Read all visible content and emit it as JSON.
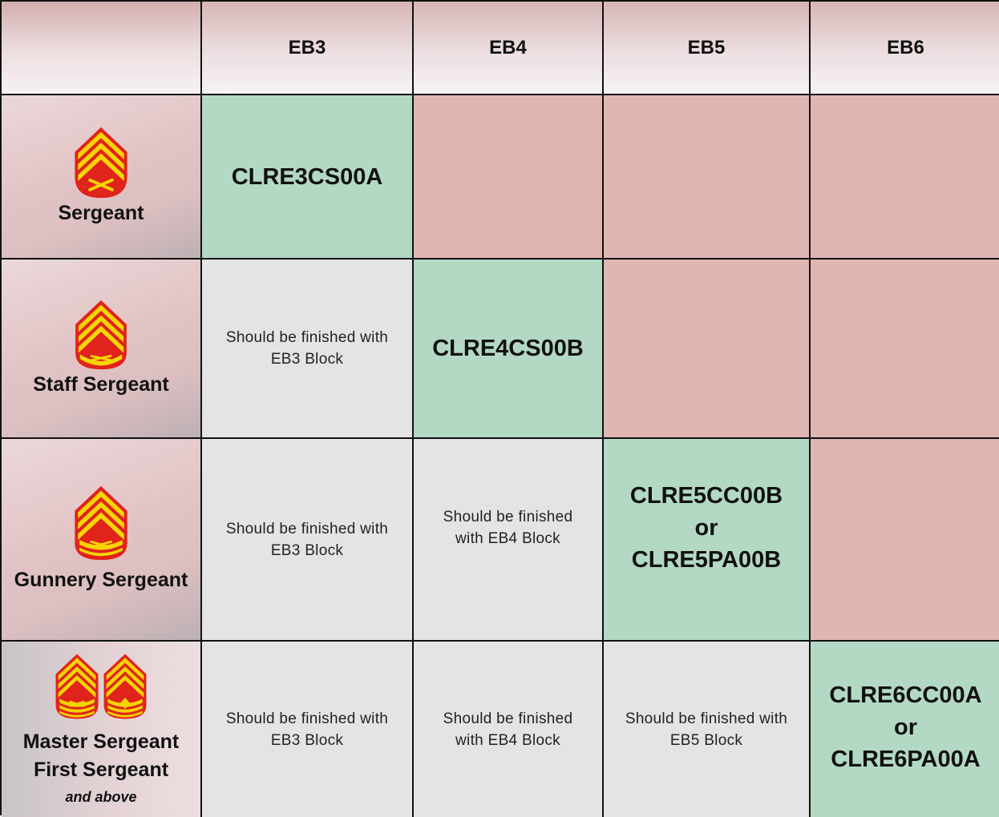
{
  "columns": [
    "EB3",
    "EB4",
    "EB5",
    "EB6"
  ],
  "ranks": [
    {
      "name": "Sergeant",
      "insignia": "sergeant-chevron-icon"
    },
    {
      "name": "Staff Sergeant",
      "insignia": "staff-sergeant-chevron-icon"
    },
    {
      "name": "Gunnery Sergeant",
      "insignia": "gunnery-sergeant-chevron-icon"
    },
    {
      "name_line1": "Master Sergeant",
      "name_line2": "First Sergeant",
      "sub": "and above",
      "insignia": [
        "master-sergeant-chevron-icon",
        "first-sergeant-chevron-icon"
      ]
    }
  ],
  "rows": [
    {
      "eb3": {
        "code": "CLRE3CS00A",
        "status": "current"
      },
      "eb4": {
        "status": "not-applicable"
      },
      "eb5": {
        "status": "not-applicable"
      },
      "eb6": {
        "status": "not-applicable"
      }
    },
    {
      "eb3": {
        "note_line1": "Should be finished with",
        "note_line2": "EB3 Block",
        "status": "completed"
      },
      "eb4": {
        "code": "CLRE4CS00B",
        "status": "current"
      },
      "eb5": {
        "status": "not-applicable"
      },
      "eb6": {
        "status": "not-applicable"
      }
    },
    {
      "eb3": {
        "note_line1": "Should be finished with",
        "note_line2": "EB3 Block",
        "status": "completed"
      },
      "eb4": {
        "note_line1": "Should be finished",
        "note_line2": "with EB4 Block",
        "status": "completed"
      },
      "eb5": {
        "code1": "CLRE5CC00B",
        "or": "or",
        "code2": "CLRE5PA00B",
        "status": "current"
      },
      "eb6": {
        "status": "not-applicable"
      }
    },
    {
      "eb3": {
        "note_line1": "Should be finished with",
        "note_line2": "EB3 Block",
        "status": "completed"
      },
      "eb4": {
        "note_line1": "Should be finished",
        "note_line2": "with EB4 Block",
        "status": "completed"
      },
      "eb5": {
        "note_line1": "Should be finished with",
        "note_line2": "EB5 Block",
        "status": "completed"
      },
      "eb6": {
        "code1": "CLRE6CC00A",
        "or": "or",
        "code2": "CLRE6PA00A",
        "status": "current"
      }
    }
  ],
  "colors": {
    "current": "#b3d9c5",
    "not_applicable": "#dfb6b2",
    "completed": "#e4e4e4",
    "insignia_gold": "#f5d400",
    "insignia_red": "#e0231b"
  }
}
